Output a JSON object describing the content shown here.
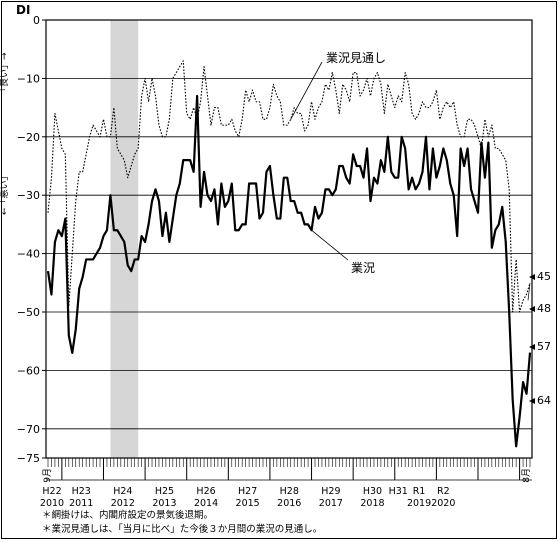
{
  "chart_data": {
    "type": "line",
    "y_axis_label": "DI",
    "y_axis_upper_note": "「良い」→",
    "y_axis_lower_note": "←「悪い」",
    "ylim": [
      -75,
      0
    ],
    "y_ticks": [
      0,
      -10,
      -20,
      -30,
      -40,
      -50,
      -60,
      -70,
      -75
    ],
    "x_start_label": "9月",
    "x_end_label": "8月",
    "x_start": "2010-09",
    "x_end": "2020-08",
    "grid": "horizontal",
    "shaded_period": {
      "from": "2012-03",
      "to": "2012-11"
    },
    "era_labels": [
      {
        "era": "H22",
        "year": "2010"
      },
      {
        "era": "H23",
        "year": "2011"
      },
      {
        "era": "H24",
        "year": "2012"
      },
      {
        "era": "H25",
        "year": "2013"
      },
      {
        "era": "H26",
        "year": "2014"
      },
      {
        "era": "H27",
        "year": "2015"
      },
      {
        "era": "H28",
        "year": "2016"
      },
      {
        "era": "H29",
        "year": "2017"
      },
      {
        "era": "H30",
        "year": "2018"
      },
      {
        "era": "H31",
        "year": ""
      },
      {
        "era": "R1",
        "year": "2019"
      },
      {
        "era": "R2",
        "year": "2020"
      }
    ],
    "series": [
      {
        "name": "業況",
        "style": "solid",
        "values": [
          -43,
          -47,
          -38,
          -36,
          -37,
          -34,
          -54,
          -57,
          -53,
          -46,
          -44,
          -41,
          -41,
          -41,
          -40,
          -39,
          -37,
          -36,
          -30,
          -36,
          -36,
          -37,
          -38,
          -42,
          -43,
          -41,
          -41,
          -37,
          -38,
          -35,
          -31,
          -29,
          -31,
          -37,
          -33,
          -38,
          -34,
          -30,
          -28,
          -24,
          -24,
          -24,
          -26,
          -13,
          -32,
          -26,
          -30,
          -31,
          -29,
          -35,
          -28,
          -32,
          -31,
          -28,
          -36,
          -36,
          -35,
          -35,
          -28,
          -28,
          -28,
          -34,
          -33,
          -26,
          -25,
          -30,
          -34,
          -34,
          -27,
          -27,
          -31,
          -31,
          -33,
          -33,
          -35,
          -35,
          -36,
          -32,
          -34,
          -33,
          -29,
          -29,
          -30,
          -29,
          -25,
          -25,
          -27,
          -28,
          -23,
          -25,
          -25,
          -27,
          -22,
          -31,
          -27,
          -28,
          -24,
          -26,
          -20,
          -26,
          -27,
          -27,
          -20,
          -22,
          -29,
          -27,
          -29,
          -28,
          -26,
          -20,
          -29,
          -22,
          -27,
          -25,
          -22,
          -24,
          -28,
          -30,
          -37,
          -22,
          -25,
          -22,
          -29,
          -31,
          -33,
          -21,
          -27,
          -21,
          -39,
          -36,
          -35,
          -32,
          -38,
          -50,
          -65,
          -73,
          -68,
          -62,
          -64,
          -57
        ],
        "end_labels": [
          "64",
          "57"
        ]
      },
      {
        "name": "業況見通し",
        "style": "dotted",
        "values": [
          -33,
          -27,
          -16,
          -19,
          -22,
          -23,
          -49,
          -40,
          -31,
          -26,
          -26,
          -23,
          -20,
          -18,
          -19,
          -20,
          -17,
          -20,
          -20,
          -15,
          -22,
          -23,
          -24,
          -27,
          -25,
          -23,
          -22,
          -13,
          -10,
          -14,
          -10,
          -13,
          -18,
          -20,
          -20,
          -17,
          -10,
          -9,
          -8,
          -7,
          -16,
          -17,
          -15,
          -17,
          -14,
          -8,
          -13,
          -18,
          -15,
          -15,
          -18,
          -18,
          -18,
          -17,
          -19,
          -20,
          -17,
          -12,
          -14,
          -12,
          -14,
          -14,
          -17,
          -17,
          -15,
          -11,
          -13,
          -14,
          -18,
          -18,
          -17,
          -15,
          -16,
          -16,
          -19,
          -18,
          -14,
          -17,
          -15,
          -14,
          -11,
          -12,
          -9,
          -12,
          -16,
          -11,
          -12,
          -14,
          -9,
          -9,
          -13,
          -12,
          -10,
          -13,
          -10,
          -9,
          -11,
          -16,
          -11,
          -13,
          -15,
          -13,
          -14,
          -9,
          -11,
          -16,
          -17,
          -16,
          -14,
          -15,
          -15,
          -14,
          -12,
          -17,
          -15,
          -14,
          -15,
          -14,
          -18,
          -20,
          -20,
          -17,
          -17,
          -18,
          -20,
          -22,
          -17,
          -20,
          -18,
          -22,
          -22,
          -23,
          -24,
          -29,
          -50,
          -41,
          -50,
          -48,
          -47,
          -45
        ],
        "end_labels": [
          "48",
          "45"
        ]
      }
    ]
  },
  "notes": [
    "＊網掛けは、内閣府設定の景気後退期。",
    "＊業況見通しは、「当月に比べ」た今後３か月間の業況の見通し。"
  ]
}
